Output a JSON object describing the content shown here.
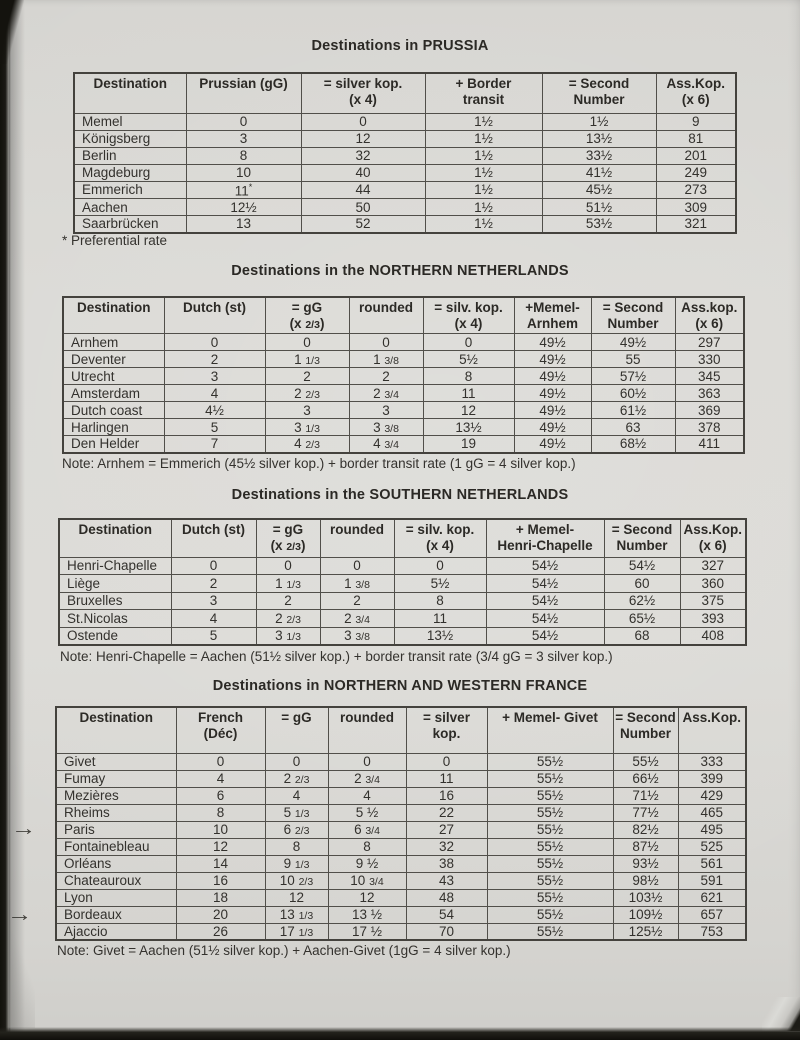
{
  "tables": [
    {
      "title": "Destinations in PRUSSIA",
      "columns": [
        [
          "Destination"
        ],
        [
          "Prussian (gG)"
        ],
        [
          "= silver kop.",
          "(x 4)"
        ],
        [
          "+ Border",
          "transit"
        ],
        [
          "= Second",
          "Number"
        ],
        [
          "Ass.Kop.",
          "(x 6)"
        ]
      ],
      "rows": [
        [
          "Memel",
          "0",
          "0",
          "1½",
          "1½",
          "9"
        ],
        [
          "Königsberg",
          "3",
          "12",
          "1½",
          "13½",
          "81"
        ],
        [
          "Berlin",
          "8",
          "32",
          "1½",
          "33½",
          "201"
        ],
        [
          "Magdeburg",
          "10",
          "40",
          "1½",
          "41½",
          "249"
        ],
        [
          "Emmerich",
          "11*",
          "44",
          "1½",
          "45½",
          "273"
        ],
        [
          "Aachen",
          "12½",
          "50",
          "1½",
          "51½",
          "309"
        ],
        [
          "Saarbrücken",
          "13",
          "52",
          "1½",
          "53½",
          "321"
        ]
      ],
      "note": "* Preferential rate"
    },
    {
      "title": "Destinations in the NORTHERN NETHERLANDS",
      "columns": [
        [
          "Destination"
        ],
        [
          "Dutch (st)"
        ],
        [
          "= gG",
          "(x 2/3)"
        ],
        [
          "rounded"
        ],
        [
          "= silv. kop.",
          "(x 4)"
        ],
        [
          "+Memel-",
          "Arnhem"
        ],
        [
          "= Second",
          "Number"
        ],
        [
          "Ass.kop.",
          "(x 6)"
        ]
      ],
      "rows": [
        [
          "Arnhem",
          "0",
          "0",
          "0",
          "0",
          "49½",
          "49½",
          "297"
        ],
        [
          "Deventer",
          "2",
          "1 1/3",
          "1 3/8",
          "5½",
          "49½",
          "55",
          "330"
        ],
        [
          "Utrecht",
          "3",
          "2",
          "2",
          "8",
          "49½",
          "57½",
          "345"
        ],
        [
          "Amsterdam",
          "4",
          "2 2/3",
          "2 3/4",
          "11",
          "49½",
          "60½",
          "363"
        ],
        [
          "Dutch coast",
          "4½",
          "3",
          "3",
          "12",
          "49½",
          "61½",
          "369"
        ],
        [
          "Harlingen",
          "5",
          "3 1/3",
          "3 3/8",
          "13½",
          "49½",
          "63",
          "378"
        ],
        [
          "Den Helder",
          "7",
          "4 2/3",
          "4 3/4",
          "19",
          "49½",
          "68½",
          "411"
        ]
      ],
      "note": "Note: Arnhem = Emmerich (45½ silver kop.) + border transit rate (1 gG = 4 silver kop.)"
    },
    {
      "title": "Destinations in the SOUTHERN NETHERLANDS",
      "columns": [
        [
          "Destination"
        ],
        [
          "Dutch (st)"
        ],
        [
          "= gG",
          "(x 2/3)"
        ],
        [
          "rounded"
        ],
        [
          "= silv. kop.",
          "(x 4)"
        ],
        [
          "+ Memel-",
          "Henri-Chapelle"
        ],
        [
          "= Second",
          "Number"
        ],
        [
          "Ass.Kop.",
          "(x 6)"
        ]
      ],
      "rows": [
        [
          "Henri-Chapelle",
          "0",
          "0",
          "0",
          "0",
          "54½",
          "54½",
          "327"
        ],
        [
          "Liège",
          "2",
          "1 1/3",
          "1 3/8",
          "5½",
          "54½",
          "60",
          "360"
        ],
        [
          "Bruxelles",
          "3",
          "2",
          "2",
          "8",
          "54½",
          "62½",
          "375"
        ],
        [
          "St.Nicolas",
          "4",
          "2 2/3",
          "2 3/4",
          "11",
          "54½",
          "65½",
          "393"
        ],
        [
          "Ostende",
          "5",
          "3 1/3",
          "3 3/8",
          "13½",
          "54½",
          "68",
          "408"
        ]
      ],
      "note": "Note: Henri-Chapelle = Aachen (51½ silver kop.) + border transit rate (3/4 gG = 3 silver kop.)"
    },
    {
      "title": "Destinations in NORTHERN AND WESTERN FRANCE",
      "columns": [
        [
          "Destination"
        ],
        [
          "French",
          "(Déc)"
        ],
        [
          "= gG"
        ],
        [
          "rounded"
        ],
        [
          "= silver",
          "kop."
        ],
        [
          "+ Memel- Givet"
        ],
        [
          "= Second",
          "Number"
        ],
        [
          "Ass.Kop."
        ]
      ],
      "rows": [
        [
          "Givet",
          "0",
          "0",
          "0",
          "0",
          "55½",
          "55½",
          "333"
        ],
        [
          "Fumay",
          "4",
          "2 2/3",
          "2 3/4",
          "11",
          "55½",
          "66½",
          "399"
        ],
        [
          "Mezières",
          "6",
          "4",
          "4",
          "16",
          "55½",
          "71½",
          "429"
        ],
        [
          "Rheims",
          "8",
          "5 1/3",
          "5 ½",
          "22",
          "55½",
          "77½",
          "465"
        ],
        [
          "Paris",
          "10",
          "6 2/3",
          "6 3/4",
          "27",
          "55½",
          "82½",
          "495"
        ],
        [
          "Fontainebleau",
          "12",
          "8",
          "8",
          "32",
          "55½",
          "87½",
          "525"
        ],
        [
          "Orléans",
          "14",
          "9 1/3",
          "9 ½",
          "38",
          "55½",
          "93½",
          "561"
        ],
        [
          "Chateauroux",
          "16",
          "10 2/3",
          "10 3/4",
          "43",
          "55½",
          "98½",
          "591"
        ],
        [
          "Lyon",
          "18",
          "12",
          "12",
          "48",
          "55½",
          "103½",
          "621"
        ],
        [
          "Bordeaux",
          "20",
          "13 1/3",
          "13 ½",
          "54",
          "55½",
          "109½",
          "657"
        ],
        [
          "Ajaccio",
          "26",
          "17 1/3",
          "17 ½",
          "70",
          "55½",
          "125½",
          "753"
        ]
      ],
      "note": "Note: Givet = Aachen (51½ silver kop.) + Aachen-Givet (1gG = 4 silver kop.)"
    }
  ],
  "annotations": {
    "glyph": "→",
    "targets": [
      "Paris",
      "Bordeaux"
    ]
  },
  "colors": {
    "paper": "#dbdad6",
    "scan_background": "#1a1914",
    "table_border": "#514f4a",
    "text": "#33312d"
  }
}
